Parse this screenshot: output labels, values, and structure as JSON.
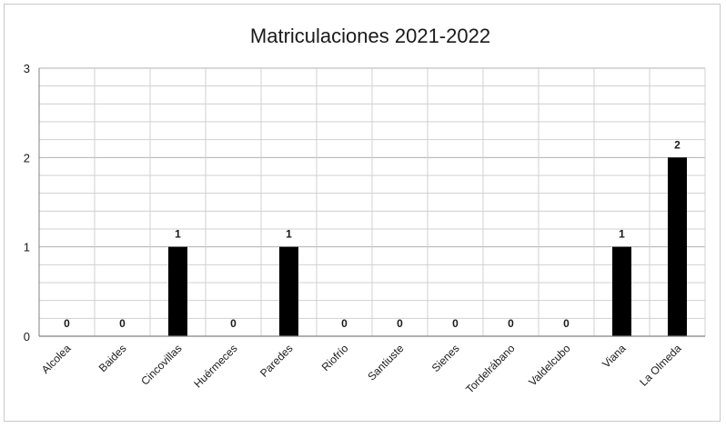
{
  "chart_data": {
    "type": "bar",
    "title": "Matriculaciones  2021-2022",
    "categories": [
      "Alcolea",
      "Baides",
      "Cincovillas",
      "Huérmeces",
      "Paredes",
      "Riofrío",
      "Santiuste",
      "Sienes",
      "Tordelrábano",
      "Valdelcubo",
      "Viana",
      "La Olmeda"
    ],
    "values": [
      0,
      0,
      1,
      0,
      1,
      0,
      0,
      0,
      0,
      0,
      1,
      2
    ],
    "ylim": [
      0,
      3
    ],
    "yticks": [
      "0",
      "1",
      "2",
      "3"
    ],
    "grid": true,
    "xlabel": "",
    "ylabel": "",
    "bar_color": "#000000",
    "grid_color": "#d0d0d0"
  }
}
